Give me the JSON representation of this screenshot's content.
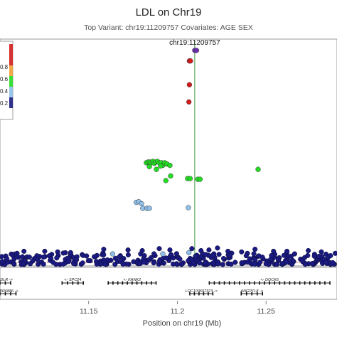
{
  "chart_data": {
    "type": "scatter",
    "title": "LDL on Chr19",
    "subtitle": "Top Variant: chr19:11209757 Covariates: AGE SEX",
    "xlabel": "Position on chr19 (Mb)",
    "x_ticks": [
      "11.15",
      "11.2",
      "11.25"
    ],
    "x_tick_values": [
      11.15,
      11.2,
      11.25
    ],
    "xlim": [
      11.1,
      11.29
    ],
    "ylim": [
      0,
      17
    ],
    "top_variant": {
      "label": "chr19:11209757",
      "x": 11.2098,
      "y": 16.2
    },
    "legend": {
      "placement": "top-left",
      "labels": [
        "0.8",
        "0.6",
        "0.4",
        "0.2"
      ]
    },
    "colors": {
      "r2_high": "#d41b1b",
      "r2_mid": "#22dd22",
      "r2_low": "#8fbfe8",
      "r2_none": "#1a1a80",
      "top": "#6a2fb0",
      "ref_line": "#228b22",
      "threshold_line": "#cc2222"
    },
    "threshold": 0.15,
    "series": [
      {
        "r2": "high",
        "points": [
          [
            11.2068,
            15.4
          ],
          [
            11.2074,
            15.4
          ],
          [
            11.2068,
            13.6
          ],
          [
            11.2065,
            12.3
          ]
        ]
      },
      {
        "r2": "mid",
        "points": [
          [
            11.1825,
            7.7
          ],
          [
            11.1835,
            7.75
          ],
          [
            11.1845,
            7.75
          ],
          [
            11.1852,
            7.7
          ],
          [
            11.1862,
            7.8
          ],
          [
            11.187,
            7.65
          ],
          [
            11.1878,
            7.75
          ],
          [
            11.1888,
            7.8
          ],
          [
            11.1898,
            7.7
          ],
          [
            11.191,
            7.7
          ],
          [
            11.1918,
            7.5
          ],
          [
            11.1928,
            7.7
          ],
          [
            11.1942,
            7.6
          ],
          [
            11.1958,
            7.5
          ],
          [
            11.1962,
            6.7
          ],
          [
            11.1882,
            7.2
          ],
          [
            11.1935,
            6.35
          ],
          [
            11.2058,
            6.5
          ],
          [
            11.2072,
            6.5
          ],
          [
            11.2115,
            6.45
          ],
          [
            11.2128,
            6.45
          ],
          [
            11.2455,
            7.2
          ],
          [
            11.1842,
            7.4
          ],
          [
            11.1905,
            7.45
          ]
        ]
      },
      {
        "r2": "low",
        "points": [
          [
            11.1768,
            4.7
          ],
          [
            11.1782,
            4.75
          ],
          [
            11.1798,
            4.6
          ],
          [
            11.1805,
            4.25
          ],
          [
            11.1828,
            4.25
          ],
          [
            11.1842,
            4.25
          ],
          [
            11.2062,
            4.3
          ],
          [
            11.2065,
            0.9
          ],
          [
            11.1635,
            0.8
          ],
          [
            11.1918,
            0.8
          ]
        ]
      },
      {
        "r2": "top",
        "points": [
          [
            11.2098,
            16.2
          ],
          [
            11.2108,
            16.2
          ]
        ]
      }
    ],
    "background_band": {
      "x_range": [
        11.1,
        11.29
      ],
      "y_range": [
        0.0,
        0.9
      ],
      "approx_count": 320,
      "outliers": [
        [
          11.1135,
          1.0
        ],
        [
          11.1252,
          1.0
        ],
        [
          11.1325,
          0.95
        ],
        [
          11.1398,
          0.9
        ],
        [
          11.1585,
          1.15
        ],
        [
          11.1722,
          1.1
        ],
        [
          11.1802,
          1.05
        ],
        [
          11.1898,
          1.2
        ],
        [
          11.1958,
          1.1
        ],
        [
          11.2082,
          1.2
        ],
        [
          11.2133,
          1.05
        ],
        [
          11.2178,
          1.1
        ],
        [
          11.2226,
          1.25
        ],
        [
          11.2285,
          1.0
        ],
        [
          11.2362,
          0.95
        ],
        [
          11.2438,
          1.15
        ],
        [
          11.2542,
          1.0
        ],
        [
          11.2618,
          1.0
        ],
        [
          11.2738,
          1.05
        ],
        [
          11.2812,
          0.95
        ]
      ]
    },
    "genes_row1": [
      {
        "name": "LDLR",
        "start": 11.1,
        "end": 11.106,
        "strand": "+"
      },
      {
        "name": "SPC24",
        "start": 11.135,
        "end": 11.147,
        "strand": "-"
      },
      {
        "name": "KANK2",
        "start": 11.161,
        "end": 11.188,
        "strand": "-"
      },
      {
        "name": "DOCK6",
        "start": 11.218,
        "end": 11.286,
        "strand": "-"
      }
    ],
    "genes_row2": [
      {
        "name": "MIR6886",
        "start": 11.1,
        "end": 11.109,
        "strand": "+"
      },
      {
        "name": "LOC100507373",
        "start": 11.207,
        "end": 11.22,
        "strand": "+"
      },
      {
        "name": "ANGPTL8",
        "start": 11.236,
        "end": 11.248,
        "strand": "+"
      }
    ]
  }
}
